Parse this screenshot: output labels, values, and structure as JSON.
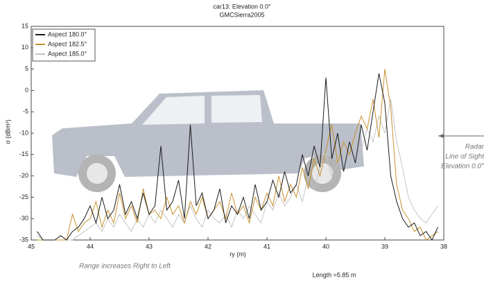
{
  "chart_data": {
    "type": "line",
    "title": "car13:  Elevation 0.0°",
    "subtitle": "GMCSierra2005",
    "xlabel": "ry (m)",
    "ylabel": "σ (dBm²)",
    "annotations": [
      "Radar",
      "Line of Sight",
      "Elevation 0.0°",
      "Range increases Right to Left",
      "Length =5.85 m"
    ],
    "legend": "upper-left",
    "xlim": [
      45,
      38
    ],
    "xticks": [
      45,
      44,
      43,
      42,
      41,
      40,
      39,
      38
    ],
    "ylim": [
      -35,
      15
    ],
    "yticks": [
      -35,
      -30,
      -25,
      -20,
      -15,
      -10,
      -5,
      0,
      5,
      10,
      15
    ],
    "x": [
      44.9,
      44.8,
      44.7,
      44.6,
      44.5,
      44.4,
      44.3,
      44.2,
      44.1,
      44,
      43.9,
      43.8,
      43.7,
      43.6,
      43.5,
      43.4,
      43.3,
      43.2,
      43.1,
      43,
      42.9,
      42.8,
      42.7,
      42.6,
      42.5,
      42.4,
      42.3,
      42.2,
      42.1,
      42,
      41.9,
      41.8,
      41.7,
      41.6,
      41.5,
      41.4,
      41.3,
      41.2,
      41.1,
      41,
      40.9,
      40.8,
      40.7,
      40.6,
      40.5,
      40.4,
      40.3,
      40.2,
      40.1,
      40,
      39.9,
      39.8,
      39.7,
      39.6,
      39.5,
      39.4,
      39.3,
      39.2,
      39.1,
      39,
      38.9,
      38.8,
      38.7,
      38.6,
      38.5,
      38.4,
      38.3,
      38.2,
      38.1
    ],
    "series": [
      {
        "name": "Aspect 180.0°",
        "color": "#1a1a1a",
        "values": [
          -33,
          -35,
          -35,
          -35,
          -34,
          -35,
          -33,
          -32,
          -30,
          -27,
          -31,
          -25,
          -30,
          -28,
          -22,
          -29,
          -26,
          -30,
          -24,
          -29,
          -27,
          -13,
          -28,
          -26,
          -21,
          -30,
          -8,
          -27,
          -24,
          -30,
          -28,
          -23,
          -31,
          -27,
          -29,
          -25,
          -30,
          -22,
          -28,
          -26,
          -21,
          -25,
          -19,
          -24,
          -22,
          -15,
          -20,
          -13,
          -18,
          3,
          -16,
          -10,
          -19,
          -12,
          -17,
          -8,
          -14,
          -5,
          4,
          -3,
          -20,
          -26,
          -30,
          -32,
          -31,
          -34,
          -33,
          -35,
          -32
        ]
      },
      {
        "name": "Aspect 182.5°",
        "color": "#c8902a",
        "values": [
          -35,
          -35,
          -35,
          -35,
          -35,
          -35,
          -29,
          -33,
          -31,
          -30,
          -26,
          -32,
          -28,
          -31,
          -24,
          -30,
          -27,
          -31,
          -23,
          -29,
          -28,
          -30,
          -25,
          -29,
          -27,
          -31,
          -26,
          -29,
          -25,
          -30,
          -28,
          -26,
          -30,
          -24,
          -29,
          -27,
          -31,
          -25,
          -28,
          -24,
          -27,
          -20,
          -26,
          -22,
          -25,
          -18,
          -23,
          -16,
          -20,
          -14,
          -8,
          -17,
          -12,
          -15,
          -10,
          -6,
          -9,
          -2,
          -11,
          5,
          -4,
          -22,
          -28,
          -30,
          -33,
          -32,
          -35,
          -34,
          -33
        ]
      },
      {
        "name": "Aspect 185.0°",
        "color": "#c4c4c4",
        "values": [
          -34,
          -35,
          -35,
          -35,
          -35,
          -35,
          -35,
          -34,
          -33,
          -32,
          -31,
          -33,
          -30,
          -32,
          -29,
          -31,
          -33,
          -30,
          -32,
          -29,
          -31,
          -28,
          -30,
          -32,
          -29,
          -31,
          -27,
          -30,
          -32,
          -28,
          -30,
          -31,
          -29,
          -32,
          -28,
          -30,
          -27,
          -29,
          -31,
          -26,
          -28,
          -24,
          -27,
          -25,
          -22,
          -26,
          -20,
          -23,
          -18,
          -15,
          -20,
          -17,
          -13,
          -16,
          -11,
          -14,
          -9,
          -12,
          -6,
          -10,
          -2,
          -12,
          -18,
          -25,
          -28,
          -30,
          -31,
          -29,
          -27
        ]
      }
    ]
  }
}
